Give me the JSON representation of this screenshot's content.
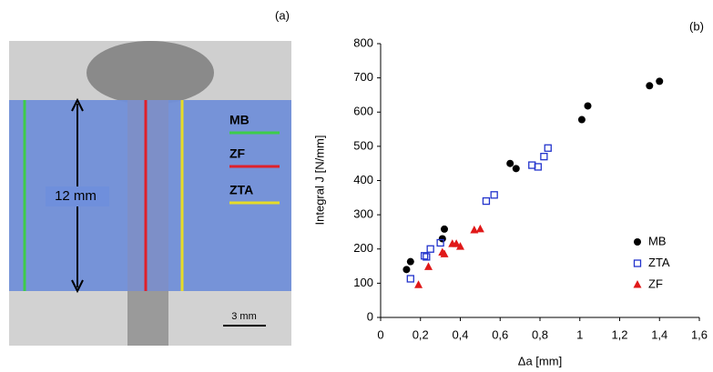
{
  "image_panel": {
    "label": "(a)",
    "dimension": "12 mm",
    "scale_bar": "3 mm",
    "zones": [
      {
        "name": "MB",
        "color": "#3dcc4a"
      },
      {
        "name": "ZF",
        "color": "#e0202a"
      },
      {
        "name": "ZTA",
        "color": "#e6dc28"
      }
    ]
  },
  "chart_data": {
    "type": "scatter",
    "panel_label": "(b)",
    "x_label": "Δa [mm]",
    "y_label": "Integral J [N/mm]",
    "xlim": [
      0,
      1.6
    ],
    "ylim": [
      0,
      800
    ],
    "xticks": [
      0,
      {
        "value": 0.2,
        "label": "0,2"
      },
      {
        "value": 0.4,
        "label": "0,4"
      },
      {
        "value": 0.6,
        "label": "0,6"
      },
      {
        "value": 0.8,
        "label": "0,8"
      },
      1,
      {
        "value": 1.2,
        "label": "1,2"
      },
      {
        "value": 1.4,
        "label": "1,4"
      },
      {
        "value": 1.6,
        "label": "1,6"
      }
    ],
    "yticks": [
      0,
      100,
      200,
      300,
      400,
      500,
      600,
      700,
      800
    ],
    "legend": "lower right",
    "series": [
      {
        "name": "MB",
        "color": "#000000",
        "marker": "circle",
        "x": [
          0.13,
          0.15,
          0.31,
          0.32,
          0.65,
          0.68,
          1.01,
          1.04,
          1.35,
          1.4
        ],
        "values": [
          140,
          163,
          230,
          258,
          450,
          435,
          578,
          618,
          677,
          690
        ]
      },
      {
        "name": "ZTA",
        "color": "#2233cc",
        "marker": "square-open",
        "x": [
          0.15,
          0.22,
          0.23,
          0.25,
          0.3,
          0.53,
          0.57,
          0.76,
          0.79,
          0.82,
          0.84
        ],
        "values": [
          113,
          180,
          177,
          200,
          218,
          340,
          358,
          445,
          440,
          470,
          495
        ]
      },
      {
        "name": "ZF",
        "color": "#e01818",
        "marker": "triangle",
        "x": [
          0.19,
          0.24,
          0.31,
          0.32,
          0.36,
          0.38,
          0.4,
          0.47,
          0.5
        ],
        "values": [
          95,
          148,
          190,
          185,
          215,
          215,
          207,
          255,
          258
        ]
      }
    ]
  }
}
